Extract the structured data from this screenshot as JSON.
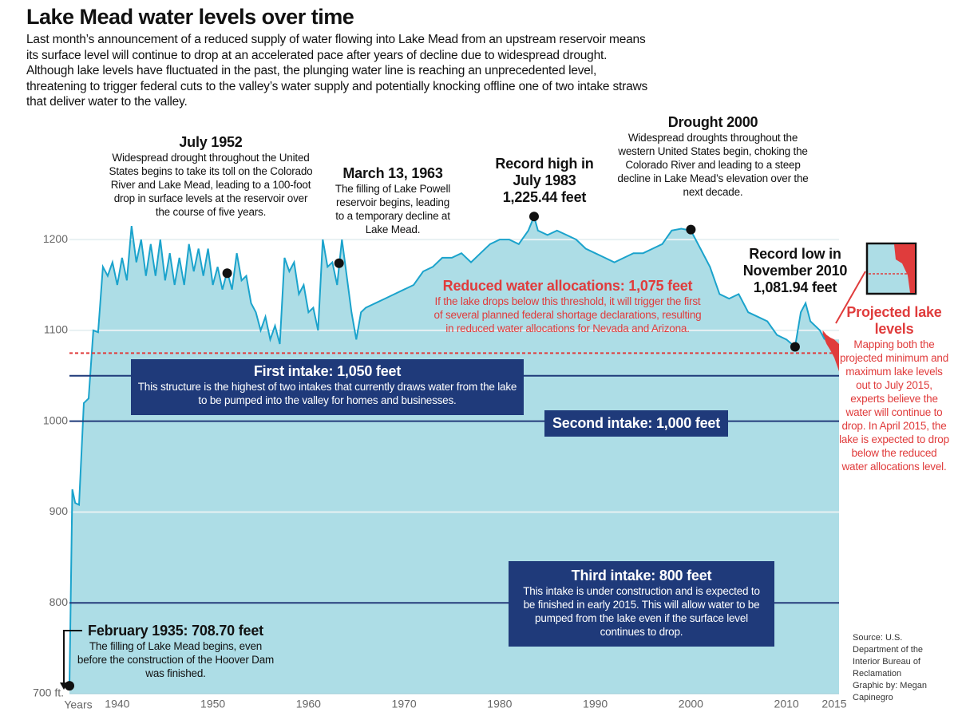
{
  "chart_data": {
    "type": "area",
    "title": "Lake Mead water levels over time",
    "subtitle": "Last month’s announcement of a reduced supply of water flowing into Lake Mead from an upstream reservoir means its surface level will continue to drop at an accelerated pace after years of decline due to widespread drought. Although lake levels have fluctuated in the past, the plunging water line is reaching an unprecedented level, threatening to trigger federal cuts to the valley’s water supply and potentially knocking offline one of two intake straws that deliver water to the valley.",
    "x_label": "Years",
    "xlim": [
      1935,
      2015.5
    ],
    "xticks": [
      1940,
      1950,
      1960,
      1970,
      1980,
      1990,
      2000,
      2010,
      2015
    ],
    "ylim": [
      700,
      1230
    ],
    "yticks": [
      {
        "value": 700,
        "label": "700 ft."
      },
      800,
      900,
      1000,
      1100,
      1200
    ],
    "grid": true,
    "x": [
      1935,
      1935.3,
      1935.6,
      1936,
      1936.5,
      1937,
      1937.5,
      1938,
      1938.5,
      1939,
      1939.5,
      1940,
      1940.5,
      1941,
      1941.5,
      1942,
      1942.5,
      1943,
      1943.5,
      1944,
      1944.5,
      1945,
      1945.5,
      1946,
      1946.5,
      1947,
      1947.5,
      1948,
      1948.5,
      1949,
      1949.5,
      1950,
      1950.5,
      1951,
      1951.5,
      1952,
      1952.5,
      1953,
      1953.5,
      1954,
      1954.5,
      1955,
      1955.5,
      1956,
      1956.5,
      1957,
      1957.5,
      1958,
      1958.5,
      1959,
      1959.5,
      1960,
      1960.5,
      1961,
      1961.5,
      1962,
      1962.5,
      1963,
      1963.5,
      1964,
      1964.5,
      1965,
      1965.5,
      1966,
      1967,
      1968,
      1969,
      1970,
      1971,
      1972,
      1973,
      1974,
      1975,
      1976,
      1977,
      1978,
      1979,
      1980,
      1981,
      1982,
      1983,
      1983.6,
      1984,
      1985,
      1986,
      1987,
      1988,
      1989,
      1990,
      1991,
      1992,
      1993,
      1994,
      1995,
      1996,
      1997,
      1998,
      1999,
      2000,
      2001,
      2002,
      2003,
      2004,
      2005,
      2006,
      2007,
      2008,
      2009,
      2010,
      2010.9,
      2011.5,
      2012,
      2012.5,
      2013,
      2013.5,
      2014
    ],
    "series": [
      {
        "color": "#1ba3cc",
        "fill": "#addde6",
        "values": [
          708.7,
          925,
          910,
          908,
          1020,
          1025,
          1100,
          1098,
          1170,
          1160,
          1175,
          1150,
          1180,
          1155,
          1215,
          1175,
          1200,
          1160,
          1195,
          1160,
          1200,
          1155,
          1185,
          1150,
          1180,
          1150,
          1195,
          1165,
          1190,
          1160,
          1190,
          1150,
          1170,
          1145,
          1165,
          1145,
          1185,
          1155,
          1160,
          1130,
          1120,
          1100,
          1115,
          1090,
          1105,
          1085,
          1180,
          1165,
          1175,
          1140,
          1150,
          1120,
          1125,
          1100,
          1200,
          1170,
          1175,
          1150,
          1200,
          1160,
          1120,
          1090,
          1120,
          1125,
          1130,
          1135,
          1140,
          1145,
          1150,
          1165,
          1170,
          1180,
          1180,
          1185,
          1175,
          1185,
          1195,
          1200,
          1200,
          1195,
          1210,
          1225.44,
          1210,
          1205,
          1210,
          1205,
          1200,
          1190,
          1185,
          1180,
          1175,
          1180,
          1185,
          1185,
          1190,
          1195,
          1210,
          1212,
          1210,
          1190,
          1170,
          1140,
          1135,
          1140,
          1120,
          1115,
          1110,
          1095,
          1090,
          1081.94,
          1120,
          1130,
          1110,
          1105,
          1100,
          1090
        ]
      }
    ],
    "projection": {
      "name": "Projected lake levels",
      "color": "#e03c3c",
      "text": "Mapping both the projected minimum and maximum lake levels out to July 2015, experts believe the water will continue to drop. In April 2015, the lake is expected to drop below the reduced water allocations level.",
      "x": [
        2013.8,
        2014.2,
        2014.6,
        2015.0,
        2015.5
      ],
      "max": [
        1100,
        1095,
        1092,
        1090,
        1085
      ],
      "min": [
        1095,
        1085,
        1078,
        1070,
        1055
      ]
    },
    "reference_lines": [
      {
        "value": 1075,
        "color": "#e03c3c",
        "style": "dashed",
        "label": "Reduced water allocations: 1,075 feet",
        "text": "If the lake drops below this threshold, it will trigger the first of several planned federal shortage declarations, resulting in reduced water allocations for Nevada and Arizona."
      },
      {
        "value": 1050,
        "color": "#1f3a7a",
        "style": "solid",
        "label": "First intake: 1,050 feet",
        "text": "This structure is the highest of two intakes that currently draws water from the lake to be pumped into the valley for homes and businesses."
      },
      {
        "value": 1000,
        "color": "#1f3a7a",
        "style": "solid",
        "label": "Second intake: 1,000 feet"
      },
      {
        "value": 800,
        "color": "#1f3a7a",
        "style": "solid",
        "label": "Third intake: 800 feet",
        "text": "This intake is under construction and is expected to be finished in early 2015. This will allow water to be pumped from the lake even if the surface level continues to drop."
      }
    ],
    "annotations": [
      {
        "x": 1935.0,
        "y": 708.7,
        "label": [
          "February 1935: 708.70 feet"
        ],
        "text": "The filling of Lake Mead begins, even before the construction of the Hoover Dam was finished."
      },
      {
        "x": 1951.5,
        "y": 1163,
        "label": [
          "July 1952"
        ],
        "text": "Widespread drought throughout the United States begins to take its toll on the Colorado River and Lake Mead, leading to a 100-foot drop in surface levels at the reservoir over the course of five years."
      },
      {
        "x": 1963.2,
        "y": 1174,
        "label": [
          "March 13, 1963"
        ],
        "text": "The filling of Lake Powell reservoir begins, leading to a temporary decline at Lake Mead."
      },
      {
        "x": 1983.6,
        "y": 1225.44,
        "label": [
          "Record high in",
          "July 1983",
          "1,225.44 feet"
        ]
      },
      {
        "x": 2000.0,
        "y": 1211,
        "label": [
          "Drought 2000"
        ],
        "text": "Widespread droughts throughout the western United States begin, choking the Colorado River and leading to a steep decline in Lake Mead’s elevation over the next decade."
      },
      {
        "x": 2010.9,
        "y": 1081.94,
        "label": [
          "Record low in",
          "November 2010",
          "1,081.94 feet"
        ]
      }
    ],
    "source": "Source: U.S. Department of the Interior Bureau of Reclamation",
    "credit": "Graphic by: Megan Capinegro"
  }
}
